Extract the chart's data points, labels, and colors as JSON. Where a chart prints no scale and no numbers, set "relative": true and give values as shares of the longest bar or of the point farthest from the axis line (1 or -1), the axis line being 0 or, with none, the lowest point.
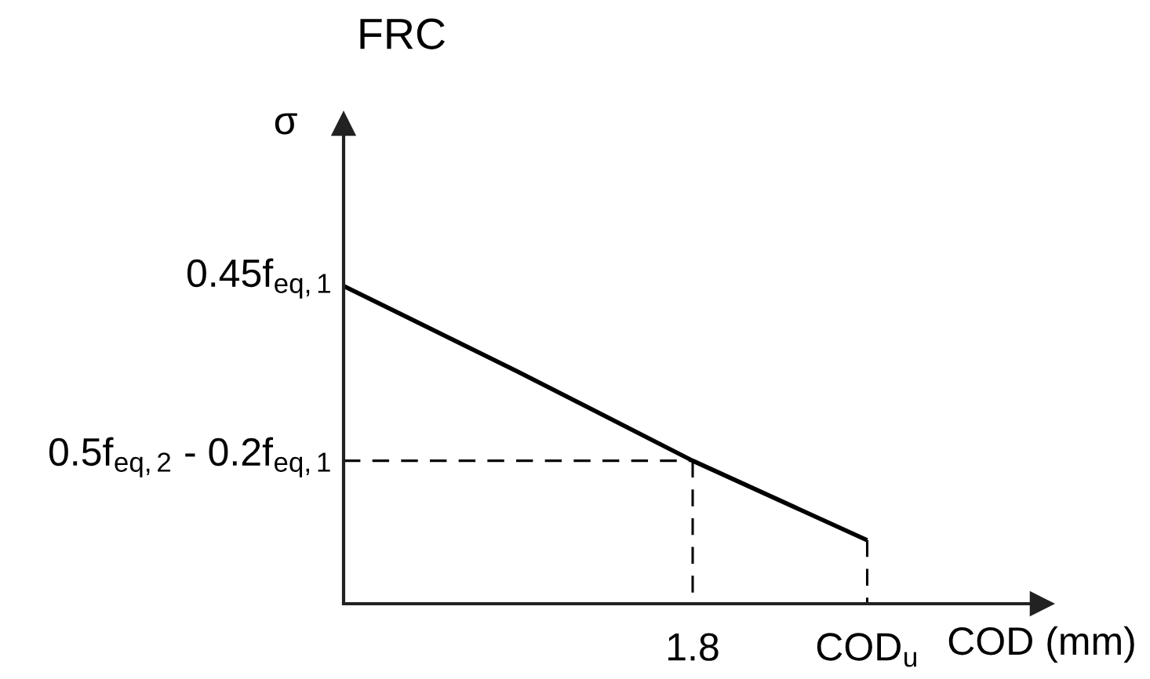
{
  "chart_data": {
    "type": "line",
    "title": "FRC",
    "xlabel": "COD (mm)",
    "ylabel": "σ",
    "relative": true,
    "grid": false,
    "categories": [
      null,
      null,
      "1.8",
      "COD$_{u}$"
    ],
    "series": [
      {
        "color": "#000000",
        "line_style": "solid",
        "values": [
          1,
          0.73,
          0.45,
          0.2
        ]
      },
      {
        "type": "line",
        "values": [
          0.45,
          0.45,
          0.45,
          null
        ],
        "color": "#000000",
        "line_style": "dashed"
      },
      {
        "type": "line",
        "x": [
          "1.8",
          "1.8"
        ],
        "values": [
          0.45,
          0
        ],
        "color": "#000000",
        "line_style": "dashed"
      },
      {
        "type": "line",
        "x": [
          "COD$_{u}$",
          "COD$_{u}$"
        ],
        "values": [
          0.2,
          0
        ],
        "color": "#000000",
        "line_style": "dashed"
      }
    ],
    "tick_labels": "x",
    "annotations": [
      "0.45f$_{eq,1}$",
      "0.5f$_{eq,2}$ - 0.2f$_{eq,1}$"
    ]
  }
}
